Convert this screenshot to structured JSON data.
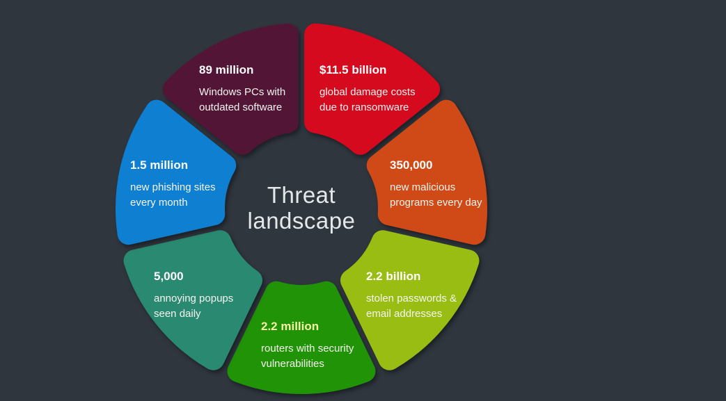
{
  "background_color": "#30363e",
  "chart_data": {
    "type": "ring-infographic",
    "title": "Threat landscape",
    "center_title": {
      "line1": "Threat",
      "line2": "landscape",
      "color": "#e4e8ea"
    },
    "legend_position": "labels-inside-segments",
    "segments": [
      {
        "id": "ransomware-damage",
        "value": "$11.5 billion",
        "desc_lines": [
          "global damage costs",
          "due to ransomware"
        ],
        "color": "#d50a1f",
        "value_color": "#ffffff",
        "start_angle": 0,
        "end_angle": 51.43
      },
      {
        "id": "malicious-programs",
        "value": "350,000",
        "desc_lines": [
          "new malicious",
          "programs every day"
        ],
        "color": "#d04a17",
        "value_color": "#ffffff",
        "start_angle": 51.43,
        "end_angle": 102.86
      },
      {
        "id": "stolen-passwords",
        "value": "2.2 billion",
        "desc_lines": [
          "stolen passwords &",
          "email addresses"
        ],
        "color": "#99bd12",
        "value_color": "#ffffff",
        "start_angle": 102.86,
        "end_angle": 154.29
      },
      {
        "id": "vulnerable-routers",
        "value": "2.2 million",
        "desc_lines": [
          "routers with security",
          "vulnerabilities"
        ],
        "color": "#219307",
        "value_color": "#f8f3a6",
        "start_angle": 154.29,
        "end_angle": 205.71
      },
      {
        "id": "annoying-popups",
        "value": "5,000",
        "desc_lines": [
          "annoying popups",
          "seen daily"
        ],
        "color": "#2a8971",
        "value_color": "#ffffff",
        "start_angle": 205.71,
        "end_angle": 257.14
      },
      {
        "id": "phishing-sites",
        "value": "1.5 million",
        "desc_lines": [
          "new phishing sites",
          "every month"
        ],
        "color": "#0f7fd2",
        "value_color": "#ffffff",
        "start_angle": 257.14,
        "end_angle": 308.57
      },
      {
        "id": "outdated-windows-pcs",
        "value": "89 million",
        "desc_lines": [
          "Windows PCs with",
          "outdated software"
        ],
        "color": "#531536",
        "value_color": "#ffffff",
        "start_angle": 308.57,
        "end_angle": 360
      }
    ]
  }
}
